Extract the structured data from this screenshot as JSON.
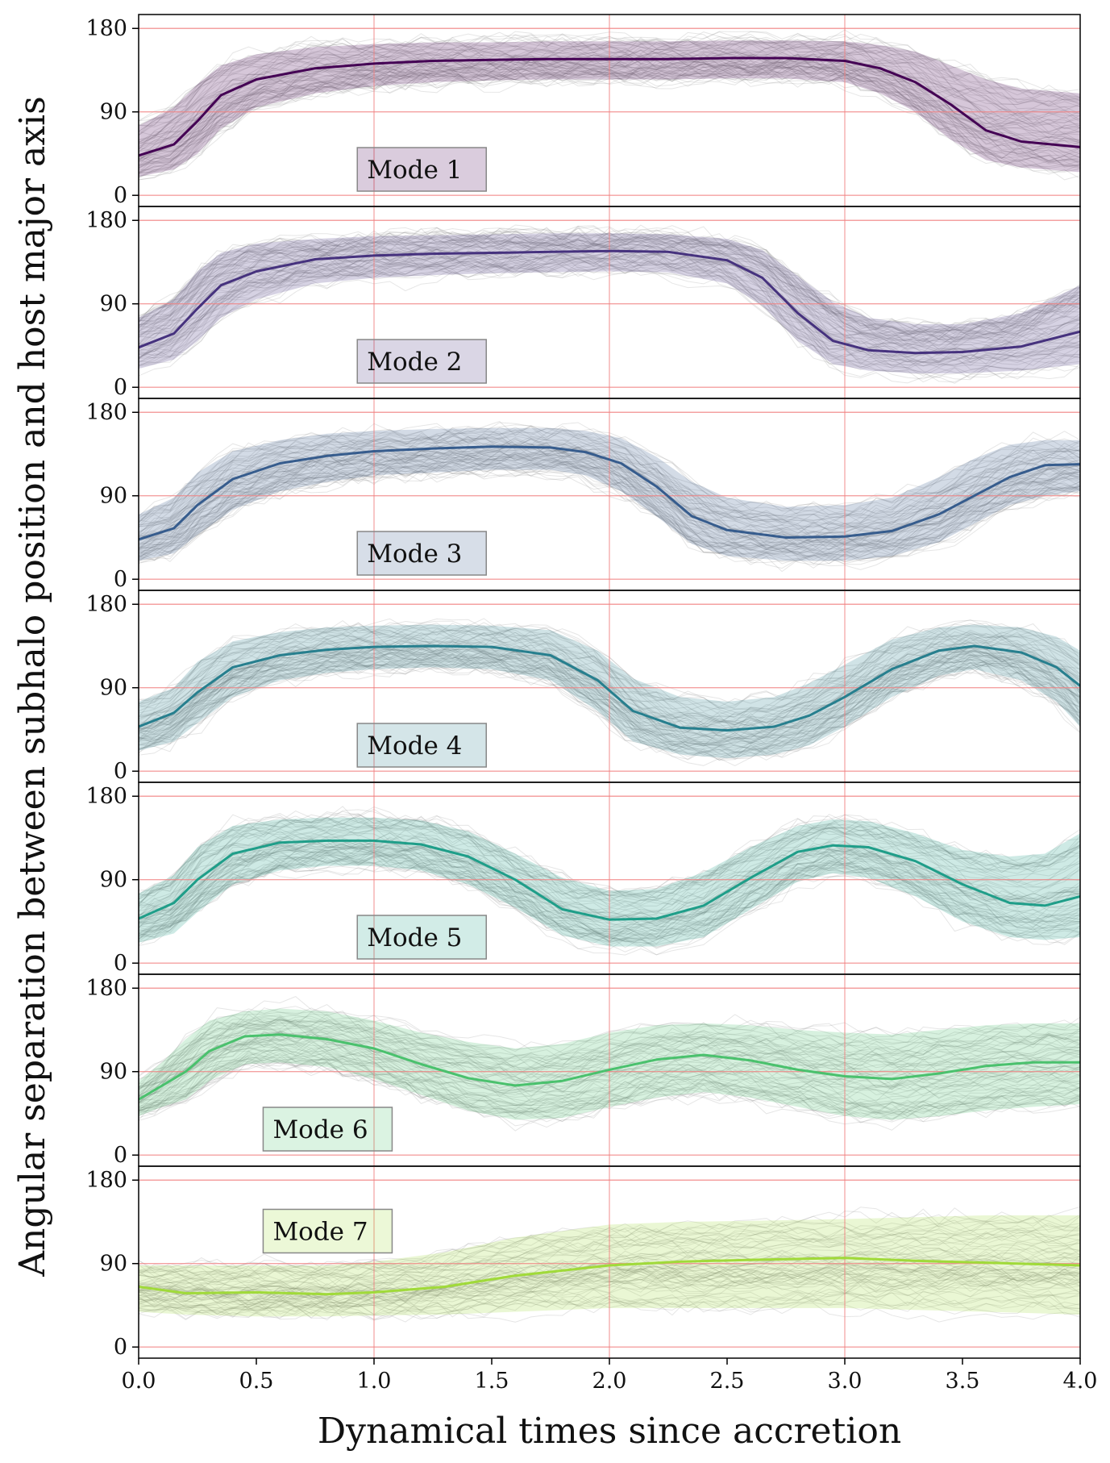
{
  "figure": {
    "xlabel": "Dynamical times since accretion",
    "ylabel": "Angular separation between subhalo position and host major axis"
  },
  "chart_data": [
    {
      "type": "line",
      "panel_label": "Mode 1",
      "color": "#440154",
      "xlim": [
        0,
        4
      ],
      "ylim": [
        -12,
        195
      ],
      "x_ticks": [
        0.0,
        0.5,
        1.0,
        1.5,
        2.0,
        2.5,
        3.0,
        3.5,
        4.0
      ],
      "y_ticks": [
        0,
        90,
        180
      ],
      "grid": true,
      "x": [
        0,
        0.15,
        0.25,
        0.35,
        0.5,
        0.75,
        1.0,
        1.25,
        1.5,
        1.75,
        2.0,
        2.25,
        2.5,
        2.75,
        3.0,
        3.15,
        3.3,
        3.45,
        3.6,
        3.75,
        4.0
      ],
      "median": [
        43,
        55,
        80,
        108,
        125,
        137,
        142,
        145,
        146,
        147,
        147,
        147,
        148,
        148,
        145,
        137,
        122,
        98,
        70,
        58,
        52
      ],
      "upper": [
        75,
        95,
        120,
        140,
        152,
        160,
        163,
        165,
        165,
        166,
        166,
        166,
        167,
        167,
        166,
        162,
        155,
        140,
        125,
        115,
        110
      ],
      "lower": [
        20,
        28,
        45,
        72,
        95,
        110,
        118,
        122,
        124,
        125,
        125,
        125,
        126,
        126,
        122,
        110,
        90,
        60,
        38,
        30,
        25
      ]
    },
    {
      "type": "line",
      "panel_label": "Mode 2",
      "color": "#46327e",
      "xlim": [
        0,
        4
      ],
      "ylim": [
        -12,
        195
      ],
      "x_ticks": [
        0.0,
        0.5,
        1.0,
        1.5,
        2.0,
        2.5,
        3.0,
        3.5,
        4.0
      ],
      "y_ticks": [
        0,
        90,
        180
      ],
      "grid": true,
      "x": [
        0,
        0.15,
        0.25,
        0.35,
        0.5,
        0.75,
        1.0,
        1.25,
        1.5,
        1.75,
        2.0,
        2.25,
        2.5,
        2.65,
        2.8,
        2.95,
        3.1,
        3.3,
        3.5,
        3.75,
        4.0
      ],
      "median": [
        43,
        58,
        85,
        110,
        125,
        138,
        142,
        144,
        145,
        146,
        147,
        146,
        137,
        118,
        80,
        50,
        40,
        37,
        38,
        44,
        60
      ],
      "upper": [
        75,
        95,
        125,
        145,
        155,
        160,
        163,
        164,
        165,
        166,
        166,
        165,
        160,
        148,
        120,
        92,
        75,
        68,
        68,
        80,
        110
      ],
      "lower": [
        20,
        30,
        50,
        75,
        95,
        112,
        118,
        121,
        123,
        124,
        125,
        124,
        112,
        88,
        50,
        25,
        18,
        15,
        15,
        18,
        25
      ]
    },
    {
      "type": "line",
      "panel_label": "Mode 3",
      "color": "#365c8d",
      "xlim": [
        0,
        4
      ],
      "ylim": [
        -12,
        195
      ],
      "x_ticks": [
        0.0,
        0.5,
        1.0,
        1.5,
        2.0,
        2.5,
        3.0,
        3.5,
        4.0
      ],
      "y_ticks": [
        0,
        90,
        180
      ],
      "grid": true,
      "x": [
        0,
        0.15,
        0.25,
        0.4,
        0.6,
        0.8,
        1.0,
        1.25,
        1.5,
        1.75,
        1.9,
        2.05,
        2.2,
        2.35,
        2.5,
        2.75,
        3.0,
        3.2,
        3.4,
        3.55,
        3.7,
        3.85,
        4.0
      ],
      "median": [
        43,
        55,
        80,
        108,
        125,
        133,
        138,
        141,
        143,
        142,
        137,
        125,
        100,
        68,
        53,
        45,
        46,
        52,
        70,
        90,
        110,
        123,
        124
      ],
      "upper": [
        70,
        88,
        115,
        138,
        150,
        157,
        160,
        162,
        163,
        163,
        160,
        152,
        132,
        105,
        88,
        78,
        80,
        88,
        110,
        130,
        145,
        150,
        150
      ],
      "lower": [
        20,
        28,
        48,
        75,
        95,
        105,
        112,
        115,
        118,
        118,
        112,
        95,
        68,
        38,
        25,
        20,
        20,
        25,
        40,
        60,
        80,
        90,
        95
      ]
    },
    {
      "type": "line",
      "panel_label": "Mode 4",
      "color": "#277f8e",
      "xlim": [
        0,
        4
      ],
      "ylim": [
        -12,
        195
      ],
      "x_ticks": [
        0.0,
        0.5,
        1.0,
        1.5,
        2.0,
        2.5,
        3.0,
        3.5,
        4.0
      ],
      "y_ticks": [
        0,
        90,
        180
      ],
      "grid": true,
      "x": [
        0,
        0.15,
        0.25,
        0.4,
        0.6,
        0.8,
        1.0,
        1.25,
        1.5,
        1.75,
        1.95,
        2.1,
        2.3,
        2.5,
        2.7,
        2.85,
        3.0,
        3.2,
        3.4,
        3.55,
        3.75,
        3.9,
        4.0
      ],
      "median": [
        48,
        63,
        85,
        112,
        125,
        131,
        134,
        135,
        134,
        125,
        98,
        65,
        47,
        44,
        48,
        60,
        80,
        110,
        130,
        135,
        128,
        112,
        92
      ],
      "upper": [
        75,
        90,
        118,
        140,
        150,
        155,
        157,
        158,
        157,
        152,
        130,
        100,
        80,
        75,
        80,
        95,
        115,
        142,
        155,
        158,
        155,
        145,
        130
      ],
      "lower": [
        22,
        32,
        52,
        80,
        98,
        106,
        110,
        112,
        110,
        98,
        65,
        32,
        18,
        14,
        18,
        28,
        48,
        80,
        103,
        110,
        98,
        75,
        48
      ]
    },
    {
      "type": "line",
      "panel_label": "Mode 5",
      "color": "#1f9e89",
      "xlim": [
        0,
        4
      ],
      "ylim": [
        -12,
        195
      ],
      "x_ticks": [
        0.0,
        0.5,
        1.0,
        1.5,
        2.0,
        2.5,
        3.0,
        3.5,
        4.0
      ],
      "y_ticks": [
        0,
        90,
        180
      ],
      "grid": true,
      "x": [
        0,
        0.15,
        0.25,
        0.4,
        0.6,
        0.8,
        1.0,
        1.2,
        1.4,
        1.6,
        1.8,
        2.0,
        2.2,
        2.4,
        2.6,
        2.8,
        2.95,
        3.1,
        3.3,
        3.5,
        3.7,
        3.85,
        4.0
      ],
      "median": [
        48,
        65,
        90,
        118,
        130,
        132,
        132,
        128,
        115,
        90,
        58,
        47,
        48,
        62,
        92,
        120,
        127,
        125,
        110,
        85,
        65,
        62,
        72
      ],
      "upper": [
        75,
        95,
        125,
        148,
        155,
        157,
        157,
        154,
        142,
        118,
        92,
        78,
        80,
        98,
        125,
        148,
        155,
        153,
        140,
        122,
        115,
        118,
        140
      ],
      "lower": [
        22,
        32,
        55,
        85,
        100,
        105,
        105,
        100,
        85,
        60,
        30,
        18,
        18,
        28,
        58,
        88,
        97,
        92,
        72,
        45,
        28,
        25,
        28
      ]
    },
    {
      "type": "line",
      "panel_label": "Mode 6",
      "color": "#4ac16d",
      "xlim": [
        0,
        4
      ],
      "ylim": [
        -12,
        195
      ],
      "x_ticks": [
        0.0,
        0.5,
        1.0,
        1.5,
        2.0,
        2.5,
        3.0,
        3.5,
        4.0
      ],
      "y_ticks": [
        0,
        90,
        180
      ],
      "grid": true,
      "x": [
        0,
        0.1,
        0.2,
        0.3,
        0.45,
        0.6,
        0.8,
        1.0,
        1.2,
        1.4,
        1.6,
        1.8,
        2.0,
        2.2,
        2.4,
        2.6,
        2.8,
        3.0,
        3.2,
        3.4,
        3.6,
        3.8,
        4.0
      ],
      "median": [
        60,
        75,
        90,
        112,
        128,
        130,
        125,
        115,
        98,
        83,
        75,
        80,
        92,
        103,
        108,
        102,
        92,
        85,
        82,
        88,
        96,
        100,
        100
      ],
      "upper": [
        80,
        100,
        125,
        145,
        155,
        158,
        155,
        145,
        132,
        122,
        115,
        120,
        132,
        140,
        142,
        140,
        135,
        132,
        130,
        135,
        140,
        142,
        142
      ],
      "lower": [
        42,
        52,
        60,
        80,
        98,
        100,
        95,
        82,
        65,
        48,
        38,
        40,
        52,
        62,
        68,
        62,
        52,
        42,
        38,
        42,
        48,
        52,
        55
      ]
    },
    {
      "type": "line",
      "panel_label": "Mode 7",
      "color": "#a0da39",
      "xlim": [
        0,
        4
      ],
      "ylim": [
        -12,
        195
      ],
      "x_ticks": [
        0.0,
        0.5,
        1.0,
        1.5,
        2.0,
        2.5,
        3.0,
        3.5,
        4.0
      ],
      "y_ticks": [
        0,
        90,
        180
      ],
      "grid": true,
      "x": [
        0,
        0.2,
        0.5,
        0.8,
        1.0,
        1.3,
        1.6,
        2.0,
        2.3,
        2.6,
        3.0,
        3.3,
        3.6,
        4.0
      ],
      "median": [
        65,
        58,
        59,
        57,
        59,
        65,
        77,
        88,
        92,
        94,
        96,
        93,
        91,
        88
      ],
      "upper": [
        88,
        88,
        88,
        88,
        92,
        102,
        118,
        132,
        135,
        136,
        138,
        140,
        142,
        142
      ],
      "lower": [
        38,
        35,
        33,
        33,
        34,
        35,
        38,
        42,
        42,
        42,
        42,
        40,
        38,
        35
      ]
    }
  ]
}
